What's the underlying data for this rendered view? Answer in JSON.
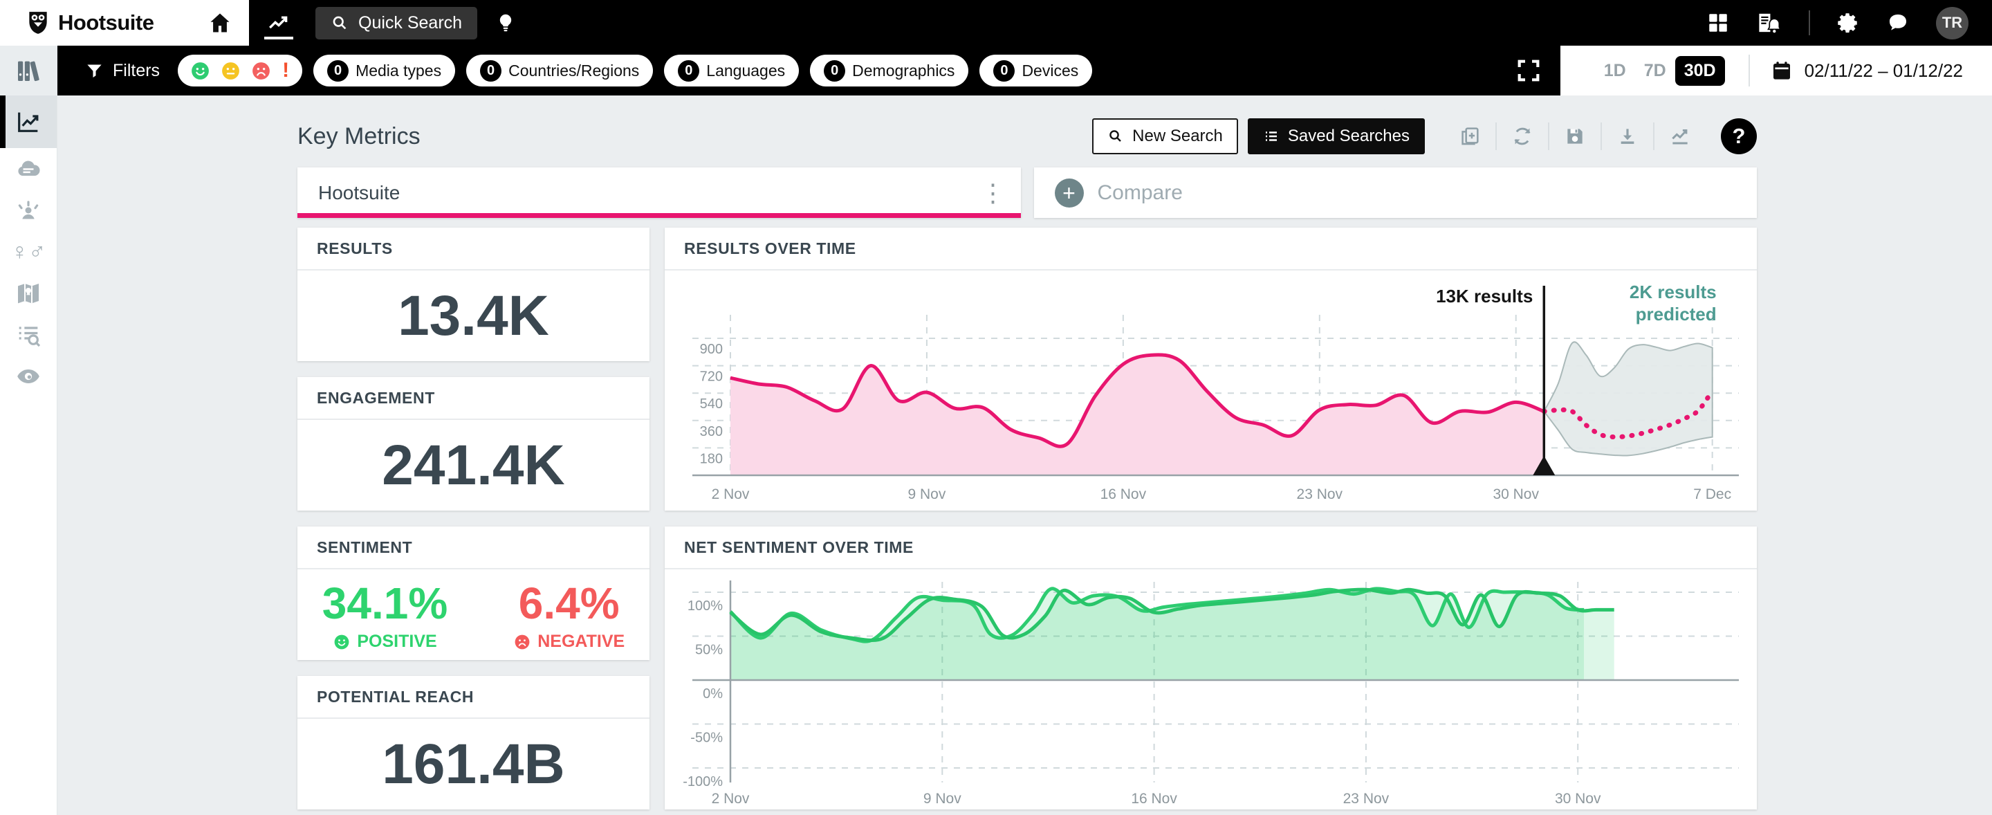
{
  "topbar": {
    "brand": "Hootsuite",
    "quick_search_label": "Quick Search",
    "avatar_initials": "TR"
  },
  "filter_bar": {
    "filters_label": "Filters",
    "sentiment_filter_icons": [
      "positive-face",
      "neutral-face",
      "negative-face",
      "alert-exclamation"
    ],
    "pills": [
      {
        "count": "0",
        "label": "Media types"
      },
      {
        "count": "0",
        "label": "Countries/Regions"
      },
      {
        "count": "0",
        "label": "Languages"
      },
      {
        "count": "0",
        "label": "Demographics"
      },
      {
        "count": "0",
        "label": "Devices"
      }
    ],
    "range_options": [
      "1D",
      "7D",
      "30D"
    ],
    "range_selected": "30D",
    "date_range": "02/11/22 – 01/12/22"
  },
  "sidebar": {
    "icons": [
      "library",
      "trends",
      "word-cloud",
      "influencers",
      "demographics",
      "geography",
      "mentions",
      "monitor"
    ],
    "active_icon": "trends"
  },
  "page": {
    "title": "Key Metrics"
  },
  "toolbar": {
    "new_search_label": "New Search",
    "saved_searches_label": "Saved Searches",
    "icon_actions": [
      "duplicate",
      "refresh",
      "save",
      "download",
      "trend-line"
    ],
    "help_label": "?"
  },
  "search": {
    "query": "Hootsuite",
    "compare_label": "Compare"
  },
  "metrics": {
    "results": {
      "label": "RESULTS",
      "value": "13.4K"
    },
    "engagement": {
      "label": "ENGAGEMENT",
      "value": "241.4K"
    },
    "sentiment": {
      "label": "SENTIMENT",
      "positive_value": "34.1%",
      "positive_label": "POSITIVE",
      "negative_value": "6.4%",
      "negative_label": "NEGATIVE"
    },
    "potential_reach": {
      "label": "POTENTIAL REACH",
      "value": "161.4B"
    }
  },
  "colors": {
    "pink": "#e8156f",
    "pink_fill": "#fbd9e8",
    "green_line_a": "#2ecc71",
    "green_line_b": "#28c469",
    "green_fill": "rgba(46,204,113,0.16)",
    "positive_green": "#2ed36e",
    "negative_red": "#f35a5a",
    "teal_annotation": "#4d9b91",
    "band_fill": "#e3e9e9",
    "band_stroke": "#aab9b9",
    "axis_label": "#8d979c",
    "grid": "#d0d9dc",
    "axis_line": "#98a2a7",
    "now_line": "#141414"
  },
  "chart_data": [
    {
      "id": "results-over-time",
      "type": "area",
      "title": "RESULTS OVER TIME",
      "days_total": 35.6,
      "now_day": 29,
      "ylim": [
        0,
        1000
      ],
      "x_ticks": [
        {
          "d": 0,
          "label": "2 Nov"
        },
        {
          "d": 7,
          "label": "9 Nov"
        },
        {
          "d": 14,
          "label": "16 Nov"
        },
        {
          "d": 21,
          "label": "23 Nov"
        },
        {
          "d": 28,
          "label": "30 Nov"
        },
        {
          "d": 35,
          "label": "7 Dec"
        }
      ],
      "y_ticks": [
        {
          "v": 180,
          "label": "180"
        },
        {
          "v": 360,
          "label": "360"
        },
        {
          "v": 540,
          "label": "540"
        },
        {
          "v": 720,
          "label": "720"
        },
        {
          "v": 900,
          "label": "900"
        }
      ],
      "annotations": {
        "now": "13K results",
        "predicted": [
          "2K results",
          "predicted"
        ]
      },
      "actual": {
        "name": "results",
        "x": [
          0,
          1,
          2,
          3,
          4,
          5,
          6,
          7,
          8,
          9,
          10,
          11,
          12,
          13,
          14,
          15,
          16,
          17,
          18,
          19,
          20,
          21,
          22,
          23,
          24,
          25,
          26,
          27,
          28,
          29
        ],
        "values": [
          640,
          600,
          580,
          490,
          435,
          720,
          490,
          545,
          440,
          445,
          300,
          245,
          205,
          520,
          730,
          790,
          755,
          550,
          380,
          330,
          260,
          430,
          465,
          460,
          525,
          345,
          420,
          415,
          480,
          420
        ]
      },
      "predicted": {
        "name": "predicted results",
        "x": [
          29,
          29.5,
          30,
          30.5,
          31,
          31.5,
          32,
          32.5,
          33,
          33.5,
          34,
          34.5,
          35
        ],
        "values": [
          420,
          428,
          420,
          330,
          268,
          252,
          258,
          276,
          302,
          332,
          372,
          425,
          556
        ]
      },
      "band_upper": {
        "name": "prediction band upper",
        "x": [
          29,
          29.5,
          30,
          30.5,
          31,
          31.5,
          32,
          32.5,
          33,
          33.5,
          34,
          34.5,
          35
        ],
        "values": [
          420,
          600,
          868,
          790,
          652,
          705,
          828,
          858,
          842,
          820,
          846,
          866,
          838
        ]
      },
      "band_lower": {
        "name": "prediction band lower",
        "x": [
          29,
          29.5,
          30,
          30.5,
          31,
          31.5,
          32,
          32.5,
          33,
          33.5,
          34,
          34.5,
          35
        ],
        "values": [
          420,
          298,
          172,
          150,
          140,
          132,
          130,
          142,
          162,
          186,
          214,
          236,
          252
        ]
      }
    },
    {
      "id": "net-sentiment-over-time",
      "type": "area",
      "title": "NET SENTIMENT OVER TIME",
      "days_total": 33,
      "ylim": [
        -115,
        115
      ],
      "x_ticks": [
        {
          "d": 0,
          "label": "2 Nov"
        },
        {
          "d": 7,
          "label": "9 Nov"
        },
        {
          "d": 14,
          "label": "16 Nov"
        },
        {
          "d": 21,
          "label": "23 Nov"
        },
        {
          "d": 28,
          "label": "30 Nov"
        }
      ],
      "y_ticks": [
        {
          "v": 100,
          "label": "100%"
        },
        {
          "v": 50,
          "label": "50%"
        },
        {
          "v": 0,
          "label": "0%"
        },
        {
          "v": -50,
          "label": "-50%"
        },
        {
          "v": -100,
          "label": "-100%"
        }
      ],
      "series": [
        {
          "name": "net sentiment",
          "x": [
            0,
            1,
            2,
            3,
            4,
            4.7,
            5.5,
            6.2,
            7,
            8,
            8.6,
            9.3,
            10,
            10.6,
            11.3,
            12,
            12.8,
            13.6,
            14.3,
            15,
            16,
            17,
            18,
            19,
            19.8,
            20.6,
            21.3,
            22,
            22.6,
            23.2,
            23.8,
            24.4,
            25,
            25.6,
            26.3,
            27,
            27.6,
            28.2
          ],
          "values": [
            78,
            48,
            76,
            57,
            47,
            46,
            72,
            94,
            91,
            86,
            52,
            51,
            75,
            104,
            88,
            96,
            95,
            79,
            83,
            86,
            89,
            92,
            95,
            99,
            103,
            98,
            104,
            101,
            97,
            62,
            98,
            60,
            98,
            100,
            100,
            97,
            82,
            80
          ]
        },
        {
          "name": "net sentiment overlay",
          "x": [
            0,
            1,
            2,
            3,
            4,
            5,
            5.8,
            6.6,
            7.4,
            8.3,
            9,
            9.7,
            10.4,
            11,
            11.8,
            12.5,
            13.2,
            14,
            14.8,
            15.5,
            16.5,
            17.5,
            18.5,
            19.3,
            20,
            21,
            21.8,
            22.4,
            23,
            23.6,
            24.2,
            24.8,
            25.4,
            26,
            26.7,
            27.4,
            28,
            28.6,
            29.2
          ],
          "values": [
            77,
            52,
            74,
            55,
            48,
            47,
            70,
            92,
            92,
            84,
            51,
            52,
            73,
            102,
            86,
            94,
            93,
            77,
            81,
            85,
            88,
            91,
            94,
            97,
            101,
            103,
            99,
            103,
            99,
            96,
            63,
            97,
            61,
            97,
            99,
            96,
            80,
            80,
            80
          ]
        }
      ]
    }
  ]
}
